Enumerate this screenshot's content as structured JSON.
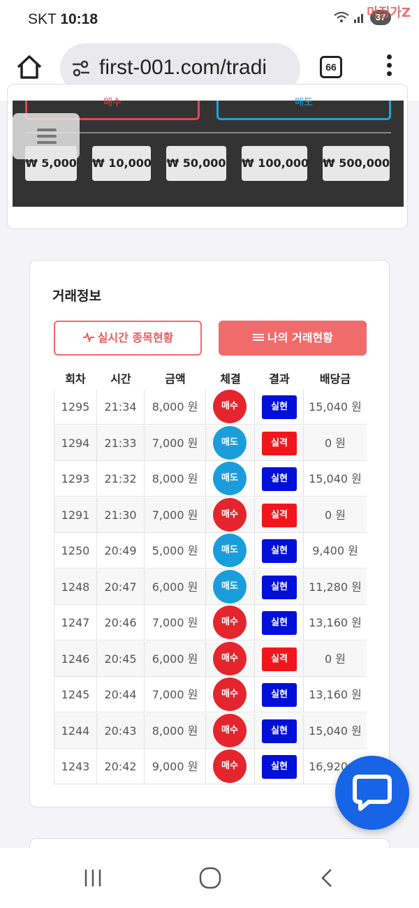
{
  "status_bar": {
    "carrier": "SKT",
    "time": "10:18",
    "battery": "37",
    "watermark": "마징가Z"
  },
  "browser": {
    "url": "first-001.com/tradi",
    "tab_count": "66"
  },
  "trade_panel": {
    "buy_label": "매수",
    "sell_label": "매도",
    "amounts": [
      "₩ 5,000",
      "₩ 10,000",
      "₩ 50,000",
      "₩ 100,000",
      "₩ 500,000"
    ]
  },
  "trade_info": {
    "title": "거래정보",
    "tab_realtime": "실시간 종목현황",
    "tab_mine": "나의 거래현황",
    "columns": [
      "회차",
      "시간",
      "금액",
      "체결",
      "결과",
      "배당금"
    ],
    "rows": [
      {
        "round": "1295",
        "time": "21:34",
        "amount": "8,000 원",
        "side": "매수",
        "result": "실현",
        "payout": "15,040 원"
      },
      {
        "round": "1294",
        "time": "21:33",
        "amount": "7,000 원",
        "side": "매도",
        "result": "실격",
        "payout": "0 원"
      },
      {
        "round": "1293",
        "time": "21:32",
        "amount": "8,000 원",
        "side": "매도",
        "result": "실현",
        "payout": "15,040 원"
      },
      {
        "round": "1291",
        "time": "21:30",
        "amount": "7,000 원",
        "side": "매수",
        "result": "실격",
        "payout": "0 원"
      },
      {
        "round": "1250",
        "time": "20:49",
        "amount": "5,000 원",
        "side": "매도",
        "result": "실현",
        "payout": "9,400 원"
      },
      {
        "round": "1248",
        "time": "20:47",
        "amount": "6,000 원",
        "side": "매도",
        "result": "실현",
        "payout": "11,280 원"
      },
      {
        "round": "1247",
        "time": "20:46",
        "amount": "7,000 원",
        "side": "매수",
        "result": "실현",
        "payout": "13,160 원"
      },
      {
        "round": "1246",
        "time": "20:45",
        "amount": "6,000 원",
        "side": "매수",
        "result": "실격",
        "payout": "0 원"
      },
      {
        "round": "1245",
        "time": "20:44",
        "amount": "7,000 원",
        "side": "매수",
        "result": "실현",
        "payout": "13,160 원"
      },
      {
        "round": "1244",
        "time": "20:43",
        "amount": "8,000 원",
        "side": "매수",
        "result": "실현",
        "payout": "15,040 원"
      },
      {
        "round": "1243",
        "time": "20:42",
        "amount": "9,000 원",
        "side": "매수",
        "result": "실현",
        "payout": "16,920 원"
      }
    ]
  },
  "colors": {
    "buy": "#e5252d",
    "sell": "#1a9edb",
    "win": "#0010d8",
    "lose": "#f1161b",
    "accent": "#f06b6c",
    "chat": "#1764e6"
  },
  "icons": {
    "home": "home-icon",
    "site_info": "site-info-icon",
    "tabs": "tabs-icon",
    "menu": "more-vert-icon",
    "hamburger": "hamburger-icon",
    "chat": "chat-icon",
    "pulse": "pulse-icon",
    "list": "list-icon"
  }
}
